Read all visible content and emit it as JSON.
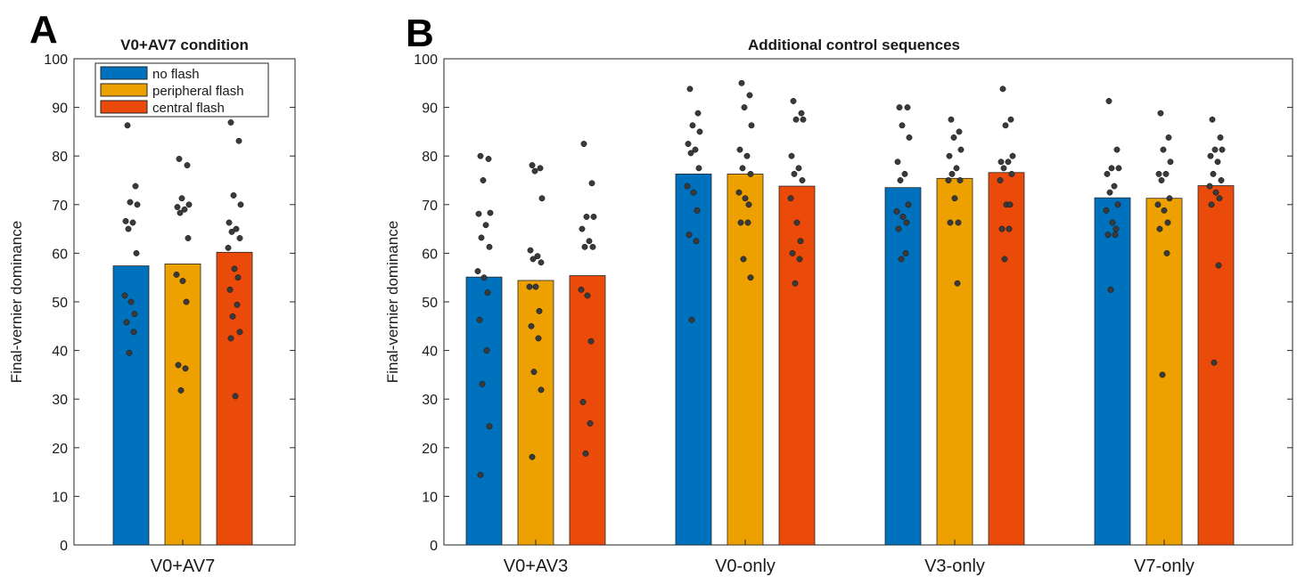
{
  "chart_data": [
    {
      "panel": "A",
      "type": "bar",
      "title": "V0+AV7 condition",
      "xlabel": "",
      "ylabel": "Final-vernier dominance",
      "ylim": [
        0,
        100
      ],
      "yticks": [
        0,
        10,
        20,
        30,
        40,
        50,
        60,
        70,
        80,
        90,
        100
      ],
      "categories": [
        "V0+AV7"
      ],
      "legend": {
        "position": "top-left",
        "entries": [
          "no flash",
          "peripheral flash",
          "central flash"
        ]
      },
      "series": [
        {
          "name": "no flash",
          "color": "#0072BD",
          "values": [
            57.4
          ],
          "points": [
            [
              86.3,
              73.8,
              70.5,
              70.0,
              66.6,
              66.3,
              65.0,
              60.0,
              51.3,
              50.0,
              47.5,
              45.8,
              43.8,
              39.5
            ]
          ]
        },
        {
          "name": "peripheral flash",
          "color": "#EDA100",
          "values": [
            57.8
          ],
          "points": [
            [
              79.4,
              78.1,
              71.3,
              70.0,
              69.5,
              69.0,
              68.3,
              63.1,
              55.6,
              54.3,
              50.0,
              37.0,
              36.3,
              31.8
            ]
          ]
        },
        {
          "name": "central flash",
          "color": "#EB4B0A",
          "values": [
            60.2
          ],
          "points": [
            [
              86.9,
              83.1,
              71.9,
              70.0,
              66.3,
              65.0,
              64.4,
              63.1,
              61.1,
              56.8,
              55.0,
              52.5,
              49.4,
              47.0,
              43.8,
              42.5,
              30.6
            ]
          ]
        }
      ]
    },
    {
      "panel": "B",
      "type": "bar",
      "title": "Additional control sequences",
      "xlabel": "",
      "ylabel": "Final-vernier dominance",
      "ylim": [
        0,
        100
      ],
      "yticks": [
        0,
        10,
        20,
        30,
        40,
        50,
        60,
        70,
        80,
        90,
        100
      ],
      "categories": [
        "V0+AV3",
        "V0-only",
        "V3-only",
        "V7-only"
      ],
      "series": [
        {
          "name": "no flash",
          "color": "#0072BD",
          "values": [
            55.1,
            76.3,
            73.5,
            71.4
          ],
          "points": [
            [
              80.0,
              79.4,
              75.0,
              68.3,
              68.1,
              65.8,
              63.2,
              61.3,
              56.3,
              55.0,
              51.9,
              46.3,
              40.0,
              33.1,
              24.4,
              14.4
            ],
            [
              93.8,
              88.8,
              86.3,
              85.0,
              82.5,
              81.3,
              80.6,
              77.5,
              73.8,
              72.5,
              68.8,
              63.8,
              62.5,
              46.3
            ],
            [
              90.0,
              90.0,
              86.3,
              83.8,
              78.8,
              76.3,
              75.0,
              70.0,
              68.6,
              67.5,
              66.3,
              65.0,
              60.0,
              58.8
            ],
            [
              91.3,
              81.3,
              77.5,
              77.5,
              76.3,
              73.8,
              72.5,
              70.0,
              68.8,
              66.3,
              65.0,
              63.8,
              63.8,
              52.5
            ]
          ]
        },
        {
          "name": "peripheral flash",
          "color": "#EDA100",
          "values": [
            54.4,
            76.3,
            75.4,
            71.3
          ],
          "points": [
            [
              78.1,
              77.5,
              76.9,
              71.3,
              60.6,
              59.4,
              58.8,
              58.1,
              53.1,
              53.1,
              48.1,
              45.0,
              42.5,
              35.6,
              31.9,
              18.1
            ],
            [
              95.0,
              92.5,
              90.0,
              86.3,
              81.3,
              80.0,
              77.5,
              76.3,
              72.5,
              71.3,
              70.0,
              66.3,
              66.3,
              58.8,
              55.0
            ],
            [
              87.5,
              85.0,
              83.8,
              81.3,
              80.0,
              77.5,
              76.3,
              75.0,
              75.0,
              71.3,
              66.3,
              66.3,
              53.8
            ],
            [
              88.8,
              83.8,
              81.3,
              78.8,
              76.3,
              76.3,
              75.0,
              71.3,
              70.0,
              68.8,
              66.3,
              65.0,
              60.0,
              35.0
            ]
          ]
        },
        {
          "name": "central flash",
          "color": "#EB4B0A",
          "values": [
            55.4,
            73.8,
            76.6,
            73.9
          ],
          "points": [
            [
              82.5,
              74.4,
              67.5,
              67.5,
              65.0,
              62.5,
              61.3,
              61.3,
              52.5,
              51.3,
              41.9,
              29.4,
              25.0,
              18.8
            ],
            [
              91.3,
              88.8,
              87.5,
              87.5,
              80.0,
              77.5,
              76.3,
              75.0,
              71.3,
              66.3,
              62.5,
              60.0,
              58.8,
              53.8
            ],
            [
              93.8,
              87.5,
              86.3,
              80.0,
              78.8,
              78.8,
              77.5,
              76.3,
              75.0,
              70.0,
              70.0,
              65.0,
              65.0,
              58.8
            ],
            [
              87.5,
              83.8,
              81.3,
              81.3,
              80.0,
              78.8,
              76.3,
              75.0,
              73.8,
              72.5,
              71.3,
              70.0,
              57.5,
              37.5
            ]
          ]
        }
      ]
    }
  ]
}
